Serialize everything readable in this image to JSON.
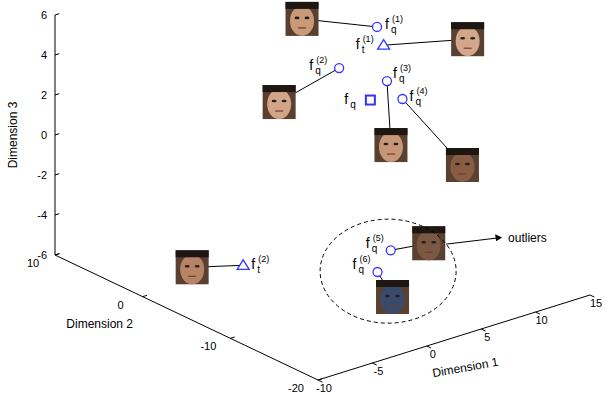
{
  "chart_data": {
    "type": "scatter3d",
    "xlabel": "Dimension 1",
    "ylabel": "Dimension 2",
    "zlabel": "Dimension 3",
    "xlim": [
      -10,
      15
    ],
    "ylim": [
      -20,
      10
    ],
    "zlim": [
      -6,
      6
    ],
    "xticks": [
      -10,
      -5,
      0,
      5,
      10,
      15
    ],
    "yticks": [
      -20,
      -10,
      0,
      10
    ],
    "zticks": [
      -6,
      -4,
      -2,
      0,
      2,
      4,
      6
    ],
    "grid": false,
    "series": [
      {
        "marker": "circle",
        "color": "#3333ff",
        "x": [
          8.8,
          5.4,
          7.7,
          8.8,
          4.5,
          2.4
        ],
        "y": [
          -3.4,
          -3.3,
          -5.9,
          -6.3,
          -10.3,
          -11.4
        ],
        "z": [
          5,
          3.5,
          3,
          2,
          -4,
          -4.5
        ],
        "labels": [
          {
            "text": "f",
            "sub": "q",
            "sup": "(1)"
          },
          {
            "text": "f",
            "sub": "q",
            "sup": "(2)"
          },
          {
            "text": "f",
            "sub": "q",
            "sup": "(3)"
          },
          {
            "text": "f",
            "sub": "q",
            "sup": "(4)"
          },
          {
            "text": "f",
            "sub": "q",
            "sup": "(5)"
          },
          {
            "text": "f",
            "sub": "q",
            "sup": "(6)"
          }
        ]
      },
      {
        "marker": "triangle",
        "color": "#3333ff",
        "x": [
          8.2,
          -3.1
        ],
        "y": [
          -4.9,
          -2.9
        ],
        "z": [
          4.5,
          -5
        ],
        "labels": [
          {
            "text": "f",
            "sub": "t",
            "sup": "(1)"
          },
          {
            "text": "f",
            "sub": "t",
            "sup": "(2)"
          }
        ]
      },
      {
        "marker": "square",
        "color": "#3333ff",
        "x": [
          6.9
        ],
        "y": [
          -5.0
        ],
        "z": [
          2
        ],
        "labels": [
          {
            "text": "f",
            "sub": "q"
          }
        ]
      }
    ],
    "annotations": [
      {
        "text": "outliers"
      }
    ]
  }
}
